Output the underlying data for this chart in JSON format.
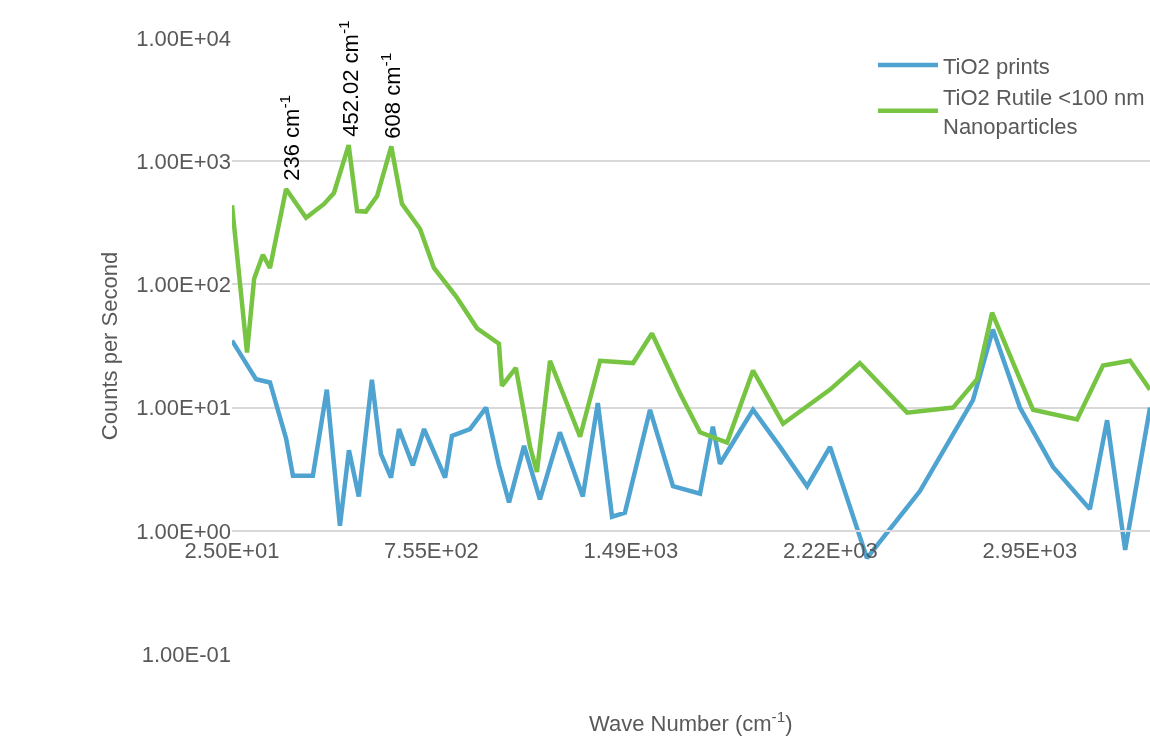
{
  "chart_data": {
    "type": "line",
    "xlabel": "Wave Number (cm$^{-1}$)",
    "ylabel": "Counts per Second",
    "xlim": [
      25,
      3385
    ],
    "xticks": [
      {
        "value": 25,
        "label": "2.50E+01"
      },
      {
        "value": 755,
        "label": "7.55E+02"
      },
      {
        "value": 1485,
        "label": "1.49E+03"
      },
      {
        "value": 2215,
        "label": "2.22E+03"
      },
      {
        "value": 2945,
        "label": "2.95E+03"
      }
    ],
    "ylim": [
      0.1,
      10000
    ],
    "yticks": [
      {
        "value": 0.1,
        "label": "1.00E-01"
      },
      {
        "value": 1,
        "label": "1.00E+00"
      },
      {
        "value": 10,
        "label": "1.00E+01"
      },
      {
        "value": 100,
        "label": "1.00E+02"
      },
      {
        "value": 1000,
        "label": "1.00E+03"
      },
      {
        "value": 10000,
        "label": "1.00E+04"
      }
    ],
    "log": "y",
    "grid": "y",
    "legend": "top right",
    "marker": "none",
    "line_style": "solid",
    "series": [
      {
        "name": "TiO2 prints",
        "color": "#4fa3d1",
        "x": [
          25,
          113,
          164,
          223,
          248,
          321,
          372,
          420,
          453,
          489,
          537,
          570,
          607,
          636,
          687,
          728,
          805,
          830,
          896,
          955,
          1002,
          1039,
          1094,
          1152,
          1225,
          1309,
          1364,
          1416,
          1463,
          1555,
          1639,
          1738,
          1785,
          1811,
          1932,
          2031,
          2130,
          2214,
          2349,
          2543,
          2737,
          2810,
          2909,
          3030,
          3165,
          3228,
          3294,
          3385
        ],
        "values": [
          35,
          17,
          16,
          5.6,
          2.8,
          2.8,
          14,
          1.1,
          4.5,
          1.9,
          16.8,
          4.2,
          2.7,
          6.7,
          3.4,
          6.7,
          2.7,
          5.9,
          6.7,
          10,
          3.4,
          1.7,
          4.9,
          1.8,
          6.3,
          1.9,
          10.9,
          1.3,
          1.4,
          9.6,
          2.3,
          2.0,
          7.0,
          3.5,
          9.6,
          4.8,
          2.3,
          4.8,
          0.6,
          2.1,
          11.5,
          43,
          10,
          3.3,
          1.5,
          7.9,
          0.7,
          10
        ]
      },
      {
        "name": "TiO2 Rutile <100 nm Nanoparticles",
        "color": "#77c443",
        "x": [
          25,
          80,
          106,
          138,
          164,
          223,
          296,
          362,
          398,
          452,
          483,
          515,
          556,
          608,
          647,
          713,
          764,
          845,
          922,
          1002,
          1013,
          1064,
          1116,
          1141,
          1189,
          1299,
          1372,
          1493,
          1562,
          1665,
          1738,
          1837,
          1932,
          2042,
          2214,
          2323,
          2496,
          2664,
          2752,
          2807,
          2909,
          2957,
          3118,
          3213,
          3312,
          3385
        ],
        "values": [
          440,
          28,
          111,
          174,
          136,
          594,
          347,
          450,
          552,
          1350,
          394,
          390,
          521,
          1320,
          450,
          283,
          136,
          80,
          44,
          33,
          15,
          21,
          4.8,
          3.0,
          24,
          5.8,
          24,
          23,
          40,
          13,
          6.3,
          5.2,
          20,
          7.4,
          14,
          23,
          9.1,
          10,
          17,
          59,
          17,
          9.6,
          8,
          22,
          24,
          14
        ]
      }
    ],
    "annotations": [
      {
        "text": "236 cm$^{-1}$",
        "x": 236,
        "y": 594
      },
      {
        "text": "452.02 cm$^{-1}$",
        "x": 452,
        "y": 1350
      },
      {
        "text": "608 cm$^{-1}$",
        "x": 608,
        "y": 1320
      }
    ]
  }
}
